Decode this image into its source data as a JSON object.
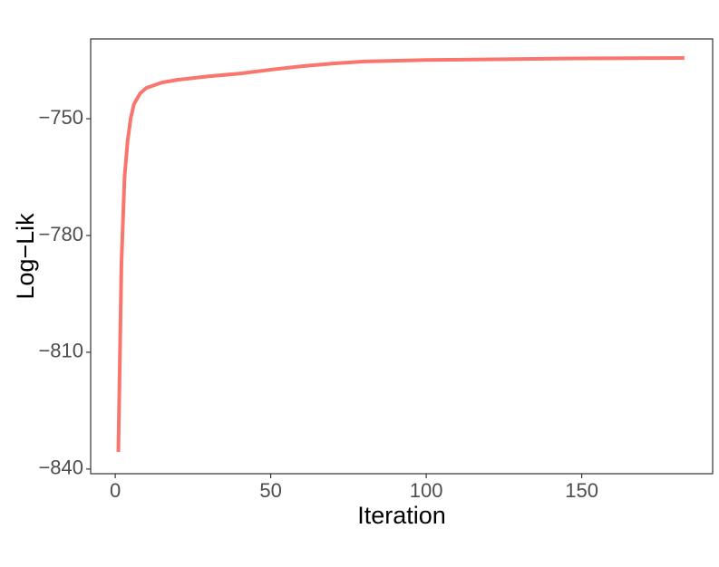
{
  "chart_data": {
    "type": "line",
    "x_label": "Iteration",
    "y_label": "Log−Lik",
    "x": [
      1,
      2,
      3,
      4,
      5,
      6,
      8,
      10,
      15,
      20,
      30,
      40,
      50,
      60,
      70,
      80,
      100,
      125,
      150,
      183
    ],
    "series": [
      {
        "color": "#f8766d",
        "values": [
          -835.6,
          -787,
          -764.9,
          -755.6,
          -749.8,
          -746.3,
          -743.5,
          -742.1,
          -740.7,
          -740,
          -739.1,
          -738.4,
          -737.4,
          -736.5,
          -735.8,
          -735.3,
          -734.9,
          -734.7,
          -734.5,
          -734.4
        ]
      }
    ],
    "xlim": [
      -7.9,
      192.1
    ],
    "xticks": [
      0,
      50,
      100,
      150
    ],
    "ylim": [
      -841.2,
      -729.5
    ],
    "yticks": [
      {
        "value": -750,
        "label": "−750"
      },
      {
        "value": -780,
        "label": "−780"
      },
      {
        "value": -810,
        "label": "−810"
      },
      {
        "value": -840,
        "label": "−840"
      }
    ],
    "grid": false
  }
}
